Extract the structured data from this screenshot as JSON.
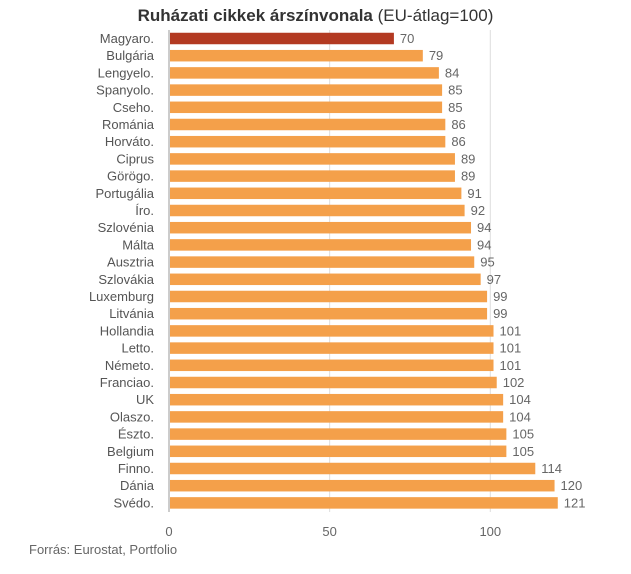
{
  "title": {
    "main": "Ruházati cikkek árszínvonala",
    "sub": "(EU-átlag=100)"
  },
  "source": "Forrás: Eurostat, Portfolio",
  "colors": {
    "bar": "#f4a04a",
    "highlight": "#b33a22",
    "grid": "#dddddd",
    "axis": "#999999"
  },
  "chart_data": {
    "type": "bar",
    "orientation": "horizontal",
    "title": "Ruházati cikkek árszínvonala (EU-átlag=100)",
    "categories": [
      "Magyaro.",
      "Bulgária",
      "Lengyelo.",
      "Spanyolo.",
      "Cseho.",
      "Románia",
      "Horváto.",
      "Ciprus",
      "Görögo.",
      "Portugália",
      "Íro.",
      "Szlovénia",
      "Málta",
      "Ausztria",
      "Szlovákia",
      "Luxemburg",
      "Litvánia",
      "Hollandia",
      "Letto.",
      "Németo.",
      "Franciao.",
      "UK",
      "Olaszo.",
      "Észto.",
      "Belgium",
      "Finno.",
      "Dánia",
      "Svédo."
    ],
    "values": [
      70,
      79,
      84,
      85,
      85,
      86,
      86,
      89,
      89,
      91,
      92,
      94,
      94,
      95,
      97,
      99,
      99,
      101,
      101,
      101,
      102,
      104,
      104,
      105,
      105,
      114,
      120,
      121
    ],
    "highlight_category": "Magyaro.",
    "xlim": [
      0,
      121
    ],
    "xticks": [
      0,
      50,
      100
    ],
    "grid": true,
    "xlabel": "",
    "ylabel": ""
  }
}
